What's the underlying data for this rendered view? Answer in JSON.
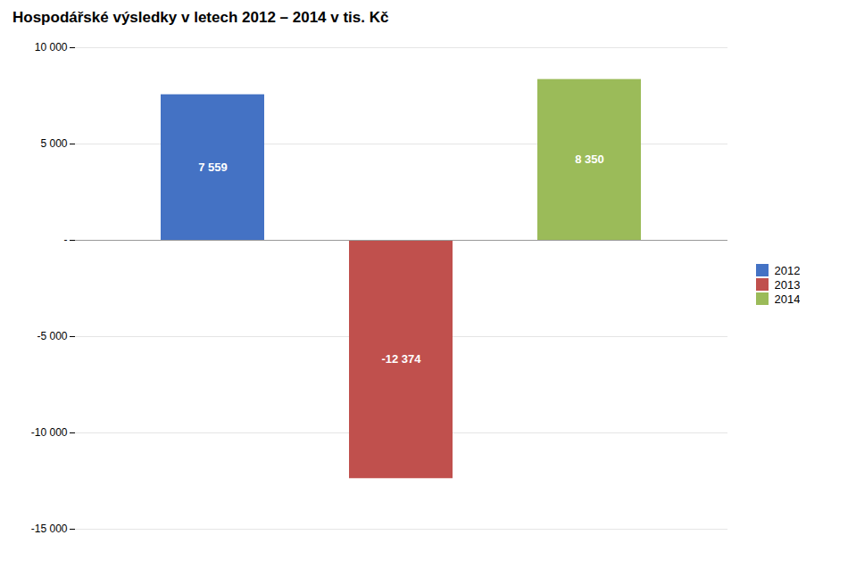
{
  "chart_data": {
    "type": "bar",
    "title": "Hospodářské výsledky v letech 2012 – 2014 v tis. Kč",
    "categories": [
      "2012",
      "2013",
      "2014"
    ],
    "values": [
      7559,
      -12374,
      8350
    ],
    "value_labels": [
      "7 559",
      "-12 374",
      "8 350"
    ],
    "data_labels": true,
    "colors": [
      "#4472C4",
      "#C0504D",
      "#9BBB59"
    ],
    "ylim": [
      -15000,
      10000
    ],
    "yticks": [
      {
        "value": -15000,
        "label": "-15 000"
      },
      {
        "value": -10000,
        "label": "-10 000"
      },
      {
        "value": -5000,
        "label": "-5 000"
      },
      {
        "value": 0,
        "label": "-"
      },
      {
        "value": 5000,
        "label": "5 000"
      },
      {
        "value": 10000,
        "label": "10 000"
      }
    ],
    "grid": true,
    "legend": "right",
    "tick_labels": "y"
  }
}
